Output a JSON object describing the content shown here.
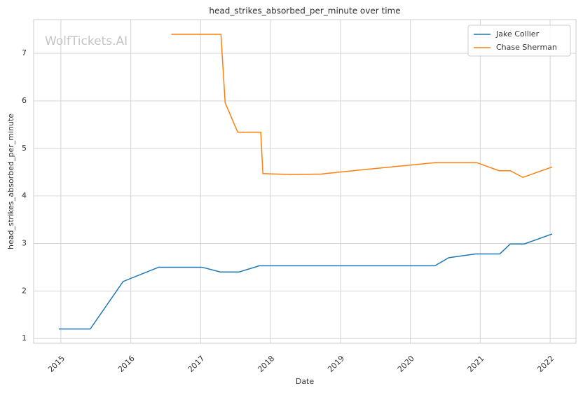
{
  "chart_data": {
    "type": "line",
    "title": "head_strikes_absorbed_per_minute over time",
    "xlabel": "Date",
    "ylabel": "head_strikes_absorbed_per_minute",
    "watermark": "WolfTickets.AI",
    "series": [
      {
        "name": "Jake Collier",
        "color": "#1f77b4",
        "x": [
          2014.97,
          2015.42,
          2015.89,
          2016.4,
          2017.02,
          2017.28,
          2017.55,
          2017.84,
          2020.35,
          2020.55,
          2020.93,
          2021.28,
          2021.43,
          2021.63,
          2022.03
        ],
        "values": [
          1.2,
          1.2,
          2.2,
          2.5,
          2.5,
          2.4,
          2.4,
          2.53,
          2.53,
          2.7,
          2.78,
          2.78,
          2.99,
          2.99,
          3.2
        ]
      },
      {
        "name": "Chase Sherman",
        "color": "#ff7f0e",
        "x": [
          2016.58,
          2017.29,
          2017.35,
          2017.53,
          2017.86,
          2017.89,
          2018.29,
          2018.72,
          2019.04,
          2020.35,
          2020.95,
          2021.27,
          2021.43,
          2021.61,
          2022.03
        ],
        "values": [
          7.4,
          7.4,
          5.96,
          5.34,
          5.34,
          4.47,
          4.45,
          4.46,
          4.51,
          4.7,
          4.7,
          4.53,
          4.53,
          4.39,
          4.61
        ]
      }
    ],
    "xlim": [
      2014.61,
      2022.37
    ],
    "xticks": [
      2015,
      2016,
      2017,
      2018,
      2019,
      2020,
      2021,
      2022
    ],
    "ylim": [
      0.9,
      7.71
    ],
    "yticks": [
      1,
      2,
      3,
      4,
      5,
      6,
      7
    ],
    "grid": true,
    "legend": "upper right"
  }
}
